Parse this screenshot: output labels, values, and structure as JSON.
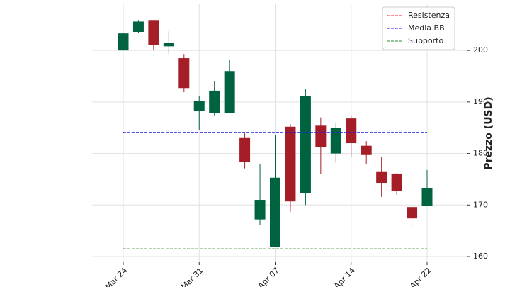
{
  "chart_data": {
    "type": "candlestick",
    "ylabel": "Prezzo (USD)",
    "categories": [
      "Mar 24",
      null,
      null,
      null,
      null,
      "Mar 31",
      null,
      null,
      null,
      null,
      "Apr 07",
      null,
      null,
      null,
      null,
      "Apr 14",
      null,
      null,
      null,
      null,
      "Apr 22"
    ],
    "open": [
      200.0,
      203.6,
      205.9,
      200.8,
      198.5,
      188.3,
      187.8,
      187.8,
      183.0,
      167.2,
      161.9,
      185.2,
      172.3,
      185.4,
      180.0,
      186.8,
      181.5,
      176.4,
      176.1,
      169.6,
      169.8
    ],
    "high": [
      203.5,
      205.9,
      205.9,
      203.7,
      199.3,
      191.2,
      194.0,
      198.2,
      183.9,
      178.0,
      183.5,
      185.7,
      192.6,
      187.0,
      185.9,
      187.4,
      182.4,
      179.3,
      176.2,
      169.6,
      176.8
    ],
    "low": [
      200.0,
      203.4,
      200.1,
      199.3,
      191.9,
      184.5,
      187.4,
      187.8,
      177.1,
      166.1,
      161.9,
      168.7,
      170.0,
      176.0,
      178.2,
      179.4,
      177.9,
      171.6,
      172.0,
      165.5,
      169.8
    ],
    "close": [
      203.3,
      205.6,
      201.1,
      201.4,
      192.7,
      190.2,
      192.2,
      196.0,
      178.4,
      171.0,
      175.3,
      170.7,
      191.1,
      181.2,
      184.9,
      182.0,
      179.7,
      174.3,
      172.7,
      167.4,
      173.2
    ],
    "up_color": "#006340",
    "down_color": "#a51e27",
    "hlines": [
      {
        "name": "Resistenza",
        "value": 206.7,
        "color": "#e8252b"
      },
      {
        "name": "Media BB",
        "value": 184.1,
        "color": "#1f1fe0"
      },
      {
        "name": "Supporto",
        "value": 161.5,
        "color": "#2a8a2a"
      }
    ],
    "ylim": [
      158.9,
      209.1
    ],
    "yticks": [
      160,
      170,
      180,
      190,
      200
    ],
    "grid": true,
    "legend": "upper right"
  }
}
